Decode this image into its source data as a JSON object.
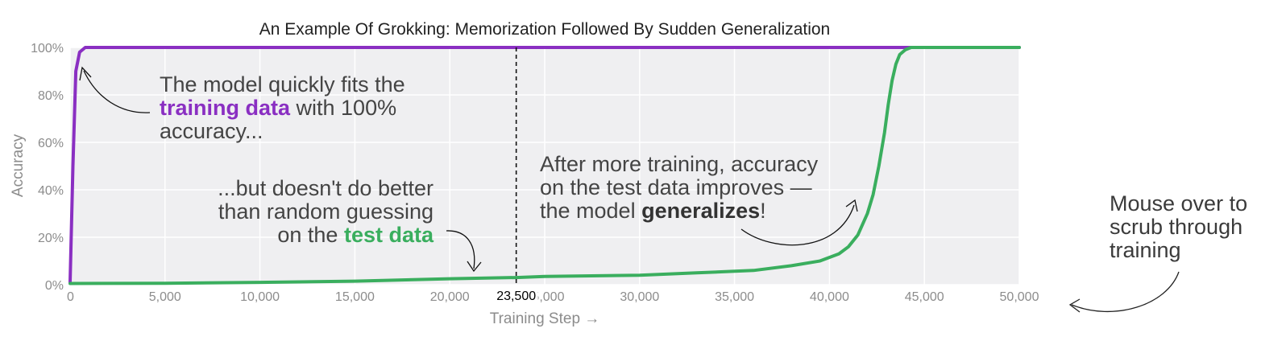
{
  "chart_data": {
    "type": "line",
    "title": "An Example Of Grokking: Memorization Followed By Sudden Generalization",
    "xlabel": "Training Step →",
    "ylabel": "Accuracy",
    "xlim": [
      0,
      50000
    ],
    "ylim": [
      0,
      100
    ],
    "x_ticks": [
      0,
      5000,
      10000,
      15000,
      20000,
      25000,
      30000,
      35000,
      40000,
      45000,
      50000
    ],
    "x_tick_labels": [
      "0",
      "5,000",
      "10,000",
      "15,000",
      "20,000",
      "25,000",
      "30,000",
      "35,000",
      "40,000",
      "45,000",
      "50,000"
    ],
    "y_ticks": [
      0,
      20,
      40,
      60,
      80,
      100
    ],
    "y_tick_labels": [
      "0%",
      "20%",
      "40%",
      "60%",
      "80%",
      "100%"
    ],
    "grid": true,
    "series": [
      {
        "color": "#8a2fc2",
        "x": [
          0,
          150,
          300,
          500,
          800,
          1500,
          5000,
          10000,
          20000,
          30000,
          40000,
          45000,
          50000
        ],
        "y": [
          1,
          50,
          90,
          98,
          100,
          100,
          100,
          100,
          100,
          100,
          100,
          100,
          100
        ]
      },
      {
        "color": "#3aae5e",
        "x": [
          0,
          5000,
          10000,
          15000,
          20000,
          23500,
          25000,
          30000,
          33000,
          36000,
          38000,
          39500,
          40500,
          41000,
          41500,
          42000,
          42300,
          42600,
          42900,
          43100,
          43300,
          43500,
          43700,
          44000,
          44300,
          45000,
          50000
        ],
        "y": [
          0.5,
          0.6,
          1,
          1.5,
          2.5,
          3,
          3.5,
          4,
          5,
          6,
          8,
          10,
          13,
          16,
          21,
          30,
          38,
          50,
          64,
          76,
          86,
          93,
          97,
          99,
          100,
          100,
          100
        ]
      }
    ],
    "annotations": {
      "train": {
        "line1": "The model quickly fits the",
        "highlight": "training data",
        "line2_rest": " with 100%",
        "line3": "accuracy..."
      },
      "test": {
        "line1": "...but doesn't do better",
        "line2": "than random guessing",
        "line3_prefix": "on the ",
        "highlight": "test data"
      },
      "generalize": {
        "line1": "After more training, accuracy",
        "line2": "on the test data improves —",
        "line3_prefix": "the model ",
        "highlight": "generalizes",
        "line3_suffix": "!"
      }
    },
    "scrub_marker": {
      "x": 23500,
      "label": "23,500"
    }
  },
  "callout": {
    "line1": "Mouse over to",
    "line2": "scrub through",
    "line3": "training"
  },
  "colors": {
    "plot_bg": "#efeff1",
    "grid": "#ffffff",
    "train": "#8a2fc2",
    "test": "#3aae5e",
    "text": "#444444",
    "axis_text": "#8c8c8c"
  }
}
